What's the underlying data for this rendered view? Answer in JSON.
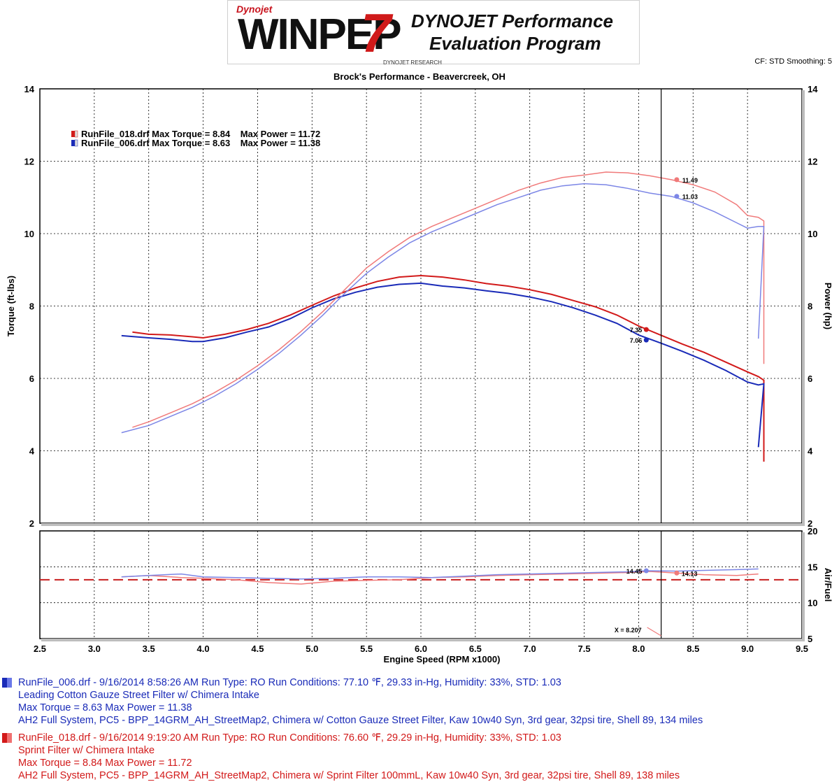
{
  "logo": {
    "brand": "Dynojet",
    "main_text": "WINPEP",
    "seven": "7",
    "tagline_1": "DYNOJET Performance",
    "tagline_2": "Evaluation Program",
    "subtext": "DYNOJET RESEARCH"
  },
  "header": {
    "cf_smoothing": "CF: STD  Smoothing: 5",
    "shop": "Brock's Performance - Beavercreek, OH"
  },
  "colors": {
    "run018_torque": "#d21a1a",
    "run018_power": "#f07a7a",
    "run006_torque": "#1a2bb8",
    "run006_power": "#7c86e6",
    "afr_target": "#c81e1e"
  },
  "chart_data": [
    {
      "type": "line",
      "title": "",
      "xlabel": "Engine Speed (RPM x1000)",
      "ylabel_left": "Torque (ft-lbs)",
      "ylabel_right": "Power (hp)",
      "xlim": [
        2.5,
        9.5
      ],
      "ylim": [
        2,
        14
      ],
      "x_ticks": [
        "2.5",
        "3.0",
        "3.5",
        "4.0",
        "4.5",
        "5.0",
        "5.5",
        "6.0",
        "6.5",
        "7.0",
        "7.5",
        "8.0",
        "8.5",
        "9.0",
        "9.5"
      ],
      "y_ticks": [
        "2",
        "4",
        "6",
        "8",
        "10",
        "12",
        "14"
      ],
      "grid": true,
      "legend": [
        {
          "label": "RunFile_018.drf Max Torque = 8.84    Max Power = 11.72",
          "color": "#d21a1a"
        },
        {
          "label": "RunFile_006.drf Max Torque = 8.63    Max Power = 11.38",
          "color": "#1a2bb8"
        }
      ],
      "cursor_x": 8.207,
      "series": [
        {
          "name": "RunFile_018.drf",
          "role": "torque",
          "color": "#d21a1a",
          "x": [
            3.35,
            3.5,
            3.7,
            3.9,
            4.0,
            4.2,
            4.4,
            4.6,
            4.8,
            5.0,
            5.2,
            5.4,
            5.6,
            5.8,
            6.0,
            6.2,
            6.4,
            6.6,
            6.8,
            7.0,
            7.2,
            7.4,
            7.6,
            7.8,
            8.0,
            8.2,
            8.4,
            8.6,
            8.8,
            9.0,
            9.1,
            9.15,
            9.15
          ],
          "values": [
            7.28,
            7.22,
            7.2,
            7.15,
            7.12,
            7.22,
            7.35,
            7.52,
            7.75,
            8.02,
            8.28,
            8.5,
            8.68,
            8.8,
            8.84,
            8.8,
            8.72,
            8.62,
            8.55,
            8.45,
            8.32,
            8.15,
            7.98,
            7.75,
            7.45,
            7.2,
            6.95,
            6.72,
            6.45,
            6.18,
            6.05,
            5.95,
            3.7
          ]
        },
        {
          "name": "RunFile_006.drf",
          "role": "torque",
          "color": "#1a2bb8",
          "x": [
            3.25,
            3.5,
            3.7,
            3.9,
            4.0,
            4.2,
            4.4,
            4.6,
            4.8,
            5.0,
            5.2,
            5.4,
            5.6,
            5.8,
            6.0,
            6.2,
            6.4,
            6.6,
            6.8,
            7.0,
            7.2,
            7.4,
            7.6,
            7.8,
            8.0,
            8.2,
            8.4,
            8.6,
            8.8,
            9.0,
            9.1,
            9.15,
            9.1
          ],
          "values": [
            7.18,
            7.12,
            7.08,
            7.02,
            7.02,
            7.12,
            7.28,
            7.42,
            7.65,
            7.95,
            8.2,
            8.38,
            8.52,
            8.6,
            8.63,
            8.55,
            8.5,
            8.42,
            8.35,
            8.25,
            8.12,
            7.95,
            7.75,
            7.52,
            7.2,
            6.98,
            6.75,
            6.5,
            6.22,
            5.9,
            5.82,
            5.85,
            4.1
          ]
        },
        {
          "name": "RunFile_018.drf",
          "role": "power",
          "color": "#f07a7a",
          "x": [
            3.35,
            3.5,
            3.7,
            3.9,
            4.1,
            4.3,
            4.5,
            4.7,
            4.9,
            5.1,
            5.3,
            5.5,
            5.7,
            5.9,
            6.1,
            6.3,
            6.5,
            6.7,
            6.9,
            7.1,
            7.3,
            7.5,
            7.7,
            7.9,
            8.1,
            8.3,
            8.5,
            8.7,
            8.9,
            9.0,
            9.1,
            9.15,
            9.15
          ],
          "values": [
            4.65,
            4.8,
            5.05,
            5.3,
            5.6,
            5.95,
            6.35,
            6.8,
            7.3,
            7.85,
            8.45,
            9.05,
            9.5,
            9.9,
            10.2,
            10.45,
            10.7,
            10.95,
            11.2,
            11.4,
            11.55,
            11.62,
            11.7,
            11.68,
            11.6,
            11.49,
            11.35,
            11.15,
            10.8,
            10.5,
            10.45,
            10.35,
            6.4
          ]
        },
        {
          "name": "RunFile_006.drf",
          "role": "power",
          "color": "#7c86e6",
          "x": [
            3.25,
            3.5,
            3.7,
            3.9,
            4.1,
            4.3,
            4.5,
            4.7,
            4.9,
            5.1,
            5.3,
            5.5,
            5.7,
            5.9,
            6.1,
            6.3,
            6.5,
            6.7,
            6.9,
            7.1,
            7.3,
            7.5,
            7.7,
            7.9,
            8.1,
            8.3,
            8.5,
            8.7,
            8.9,
            9.0,
            9.1,
            9.15,
            9.1
          ],
          "values": [
            4.5,
            4.7,
            4.95,
            5.2,
            5.5,
            5.85,
            6.25,
            6.7,
            7.2,
            7.75,
            8.35,
            8.9,
            9.35,
            9.75,
            10.05,
            10.3,
            10.55,
            10.8,
            11.0,
            11.2,
            11.32,
            11.38,
            11.35,
            11.25,
            11.12,
            11.03,
            10.85,
            10.6,
            10.3,
            10.15,
            10.2,
            10.2,
            7.1
          ]
        }
      ],
      "annotations": [
        {
          "x": 8.35,
          "y": 11.49,
          "text": "11.49",
          "color": "#f07a7a",
          "side": "right"
        },
        {
          "x": 8.35,
          "y": 11.03,
          "text": "11.03",
          "color": "#7c86e6",
          "side": "right"
        },
        {
          "x": 8.07,
          "y": 7.35,
          "text": "7.35",
          "color": "#d21a1a",
          "side": "left"
        },
        {
          "x": 8.07,
          "y": 7.06,
          "text": "7.06",
          "color": "#1a2bb8",
          "side": "left"
        }
      ]
    },
    {
      "type": "line",
      "title": "",
      "xlabel": "Engine Speed (RPM x1000)",
      "ylabel_right": "Air/Fuel",
      "xlim": [
        2.5,
        9.5
      ],
      "ylim": [
        5,
        20
      ],
      "y_ticks": [
        "5",
        "10",
        "15",
        "20"
      ],
      "grid": true,
      "target_afr": 13.2,
      "cursor_label": "X = 8.207",
      "series": [
        {
          "name": "RunFile_018.drf",
          "role": "afr",
          "color": "#f07a7a",
          "x": [
            3.25,
            3.5,
            3.8,
            4.0,
            4.3,
            4.6,
            4.9,
            5.2,
            5.5,
            5.8,
            6.1,
            6.4,
            6.7,
            7.0,
            7.3,
            7.6,
            7.9,
            8.1,
            8.35,
            8.6,
            8.9,
            9.1
          ],
          "values": [
            13.6,
            13.8,
            13.5,
            13.4,
            13.2,
            12.8,
            12.6,
            13.0,
            13.1,
            13.2,
            13.5,
            13.6,
            13.8,
            13.9,
            14.0,
            14.1,
            14.2,
            14.35,
            14.13,
            13.9,
            13.8,
            14.0
          ]
        },
        {
          "name": "RunFile_006.drf",
          "role": "afr",
          "color": "#7c86e6",
          "x": [
            3.25,
            3.5,
            3.8,
            4.0,
            4.3,
            4.6,
            4.9,
            5.2,
            5.5,
            5.8,
            6.1,
            6.4,
            6.7,
            7.0,
            7.3,
            7.6,
            7.9,
            8.07,
            8.35,
            8.6,
            8.9,
            9.1
          ],
          "values": [
            13.6,
            13.8,
            14.0,
            13.6,
            13.5,
            13.4,
            13.3,
            13.4,
            13.6,
            13.6,
            13.5,
            13.7,
            13.9,
            14.0,
            14.1,
            14.2,
            14.3,
            14.45,
            14.4,
            14.5,
            14.6,
            14.7
          ]
        }
      ],
      "annotations": [
        {
          "x": 8.07,
          "y": 14.45,
          "text": "14.45",
          "color": "#7c86e6",
          "side": "left"
        },
        {
          "x": 8.35,
          "y": 14.13,
          "text": "14.13",
          "color": "#f07a7a",
          "side": "right"
        }
      ]
    }
  ],
  "run_info": [
    {
      "swatch_color": "#1a2bb8",
      "line1": "RunFile_006.drf - 9/16/2014 8:58:26 AM  Run Type: RO  Run Conditions: 77.10 ℉, 29.33 in-Hg,  Humidity:  33%, STD: 1.03",
      "line2": "Leading Cotton Gauze Street Filter w/ Chimera Intake",
      "line3": "Max Torque = 8.63  Max Power = 11.38",
      "line4": "AH2 Full System, PC5 - BPP_14GRM_AH_StreetMap2, Chimera w/ Cotton Gauze Street Filter, Kaw 10w40 Syn, 3rd gear, 32psi tire, Shell 89, 134 miles"
    },
    {
      "swatch_color": "#d21a1a",
      "line1": "RunFile_018.drf - 9/16/2014 9:19:20 AM  Run Type: RO  Run Conditions: 76.60 ℉, 29.29 in-Hg,  Humidity:  33%, STD: 1.03",
      "line2": "Sprint Filter w/ Chimera Intake",
      "line3": "Max Torque = 8.84  Max Power = 11.72",
      "line4": "AH2 Full System, PC5 - BPP_14GRM_AH_StreetMap2, Chimera w/ Sprint Filter 100mmL, Kaw 10w40 Syn, 3rd gear, 32psi tire, Shell 89, 138 miles"
    }
  ]
}
